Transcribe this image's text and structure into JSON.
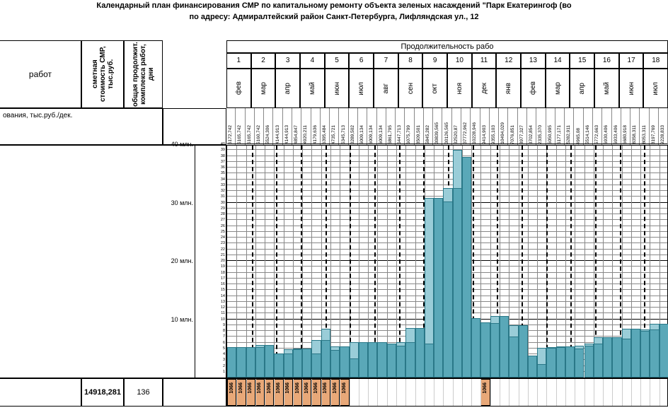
{
  "title_line1": "Календарный план финансирования СМР по капитальному ремонту объекта зеленых насаждений \"Парк Екатерингоф (во",
  "title_line2": "по адресу: Адмиралтейский район Санкт-Петербурга, Лифляндская ул., 12",
  "header": {
    "work_label": "работ",
    "cost_label": "сметная стоимость СМР, тыс.руб.",
    "duration_label": "общая продолжит. комплекса работ, дни",
    "period_label": "Продолжительность рабо"
  },
  "row_label": "ования, тыс.руб./дек.",
  "months_num": [
    "1",
    "2",
    "3",
    "4",
    "5",
    "6",
    "7",
    "8",
    "9",
    "10",
    "11",
    "12",
    "13",
    "14",
    "15",
    "16",
    "17",
    "18"
  ],
  "months_name": [
    "фев",
    "мар",
    "апр",
    "май",
    "июн",
    "июл",
    "авг",
    "сен",
    "окт",
    "ноя",
    "дек",
    "янв",
    "фев",
    "мар",
    "апр",
    "май",
    "июн",
    "июл"
  ],
  "column_values": [
    "5172,742",
    "5165,742",
    "5165,742",
    "5160,742",
    "5524,306",
    "4144,913",
    "4144,913",
    "4854,847",
    "4920,211",
    "4179,636",
    "6395,484",
    "4735,721",
    "5345,713",
    "3289,502",
    "6009,134",
    "6009,134",
    "6009,134",
    "5861,795",
    "5447,713",
    "6075,799",
    "8509,501",
    "5845,282",
    "30839,565",
    "30126,565",
    "32520,87",
    "37772,962",
    "10228,946",
    "9414,903",
    "9355,103",
    "10494,029",
    "7076,851",
    "8977,327",
    "3702,854",
    "2335,370",
    "5050,995",
    "5177,171",
    "5282,911",
    "4965,08",
    "5514,146",
    "5772,663",
    "6930,406",
    "6933,406",
    "6680,918",
    "8358,311",
    "8053,311",
    "8197,769",
    "9228,833"
  ],
  "chart": {
    "type": "bar",
    "ylim": [
      0,
      40
    ],
    "y_unit": "млн.",
    "y_major_ticks": [
      10,
      20,
      30,
      40
    ],
    "y_major_labels": [
      "10 млн.",
      "20 млн.",
      "30 млн.",
      "40 млн."
    ],
    "bar_color": "#5aa8b8",
    "bar_color_light": "#9acdd8",
    "grid_color": "#888888",
    "dashed_color": "#000000",
    "background": "#ffffff",
    "n_cols": 47,
    "values": [
      5.17,
      5.17,
      5.17,
      5.16,
      5.52,
      4.14,
      4.14,
      4.85,
      4.92,
      4.18,
      6.4,
      4.74,
      5.35,
      3.29,
      6.01,
      6.01,
      6.01,
      5.86,
      5.45,
      6.08,
      8.51,
      5.85,
      30.84,
      30.13,
      32.52,
      37.77,
      10.23,
      9.41,
      9.36,
      10.49,
      7.08,
      8.98,
      3.7,
      2.34,
      5.05,
      5.18,
      5.28,
      4.97,
      5.51,
      5.77,
      6.93,
      6.93,
      6.68,
      8.36,
      8.05,
      8.2,
      9.23
    ],
    "values_light": [
      5.17,
      5.17,
      5.17,
      5.52,
      5.52,
      4.14,
      4.85,
      4.92,
      4.92,
      6.4,
      8.4,
      5.35,
      5.35,
      6.01,
      6.01,
      6.01,
      6.01,
      5.86,
      6.08,
      8.51,
      8.51,
      30.84,
      30.84,
      32.52,
      39.0,
      37.77,
      10.23,
      9.41,
      10.49,
      10.49,
      8.98,
      8.98,
      3.7,
      5.05,
      5.18,
      5.28,
      5.28,
      5.51,
      5.77,
      6.93,
      6.93,
      6.93,
      8.36,
      8.36,
      8.2,
      9.23,
      9.23
    ]
  },
  "bottom": {
    "cost_value": "14918,281",
    "duration_value": "136",
    "orange_value": "1066",
    "orange_positions": [
      0,
      1,
      2,
      3,
      4,
      5,
      6,
      7,
      8,
      9,
      10,
      11,
      12,
      27
    ]
  },
  "colors": {
    "orange": "#e8a878",
    "bar": "#5aa8b8",
    "bar_light": "#9acdd8"
  }
}
